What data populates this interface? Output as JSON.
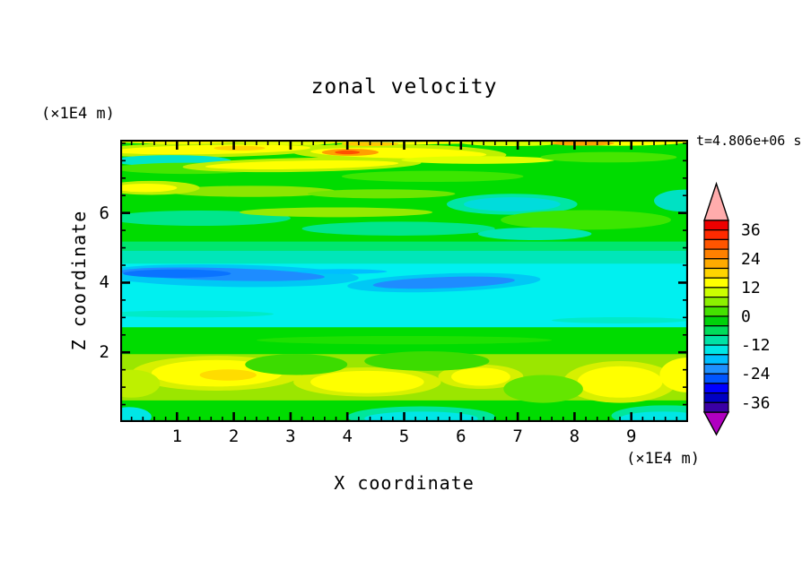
{
  "title": "zonal velocity",
  "timestamp": "t=4.806e+06 s",
  "y_axis_unit": "(×1E4 m)",
  "x_axis_unit": "(×1E4 m)",
  "x_axis_label": "X coordinate",
  "y_axis_label": "Z coordinate",
  "chart_data": {
    "type": "heatmap",
    "subtype": "filled-contour",
    "title": "zonal velocity",
    "xlabel": "X coordinate",
    "ylabel": "Z coordinate",
    "x_unit": "(×1E4 m)",
    "y_unit": "(×1E4 m)",
    "time_annotation": "t=4.806e+06 s",
    "xlim": [
      0,
      10
    ],
    "ylim": [
      0,
      8.1
    ],
    "grid": false,
    "legend_position": "colorbar-right",
    "axes": {
      "x": {
        "majors": [
          1,
          2,
          3,
          4,
          5,
          6,
          7,
          8,
          9
        ],
        "minor_step": 0.2
      },
      "y": {
        "majors": [
          2,
          4,
          6
        ],
        "minor_step": 0.5
      }
    },
    "colorbar": {
      "range": [
        -40,
        40
      ],
      "step": 4,
      "labels": [
        36,
        24,
        12,
        0,
        -12,
        -24,
        -36
      ],
      "colors_high_to_low": [
        "#EE0000",
        "#FF2A00",
        "#FF5500",
        "#FF8000",
        "#FFAA00",
        "#FFD400",
        "#FFFF00",
        "#CCFF00",
        "#8CF000",
        "#44E100",
        "#00D20A",
        "#00DC5A",
        "#00E1A5",
        "#00E6E6",
        "#00BFFF",
        "#1E90FF",
        "#0055FF",
        "#0000FF",
        "#0000C3",
        "#3A00A5"
      ],
      "above_color": "#FFACAC",
      "below_color": "#B000C0"
    },
    "field": {
      "background": "#00DC00",
      "stripes": [
        {
          "z": [
            0,
            0.62
          ],
          "color": "#00DC00"
        },
        {
          "z": [
            0.62,
            1.95
          ],
          "color": "#9BE600"
        },
        {
          "z": [
            1.95,
            2.72
          ],
          "color": "#00DC00"
        },
        {
          "z": [
            2.72,
            4.55
          ],
          "color": "#00F0F0"
        },
        {
          "z": [
            4.55,
            4.92
          ],
          "color": "#00E6B9"
        },
        {
          "z": [
            4.92,
            5.18
          ],
          "color": "#00E66E"
        },
        {
          "z": [
            5.18,
            8.1
          ],
          "color": "#00DC00"
        }
      ],
      "lenses": [
        {
          "x": 1.6,
          "z": 7.82,
          "rx": 2.1,
          "rz": 0.22,
          "color": "#BEF000",
          "rot": -1
        },
        {
          "x": 4.9,
          "z": 7.72,
          "rx": 1.9,
          "rz": 0.26,
          "color": "#BEF000",
          "rot": 1
        },
        {
          "x": 1.6,
          "z": 7.82,
          "rx": 1.75,
          "rz": 0.13,
          "color": "#FFFF00",
          "rot": -1
        },
        {
          "x": 4.9,
          "z": 7.72,
          "rx": 1.55,
          "rz": 0.15,
          "color": "#FFFF00",
          "rot": 1
        },
        {
          "x": 4.05,
          "z": 7.74,
          "rx": 0.5,
          "rz": 0.1,
          "color": "#FFA000"
        },
        {
          "x": 4.0,
          "z": 7.74,
          "rx": 0.22,
          "rz": 0.055,
          "color": "#FF5000"
        },
        {
          "x": 2.1,
          "z": 7.86,
          "rx": 0.45,
          "rz": 0.07,
          "color": "#FFD400"
        },
        {
          "x": 1.0,
          "z": 8.12,
          "rx": 1.3,
          "rz": 0.14,
          "color": "#FFFF00"
        },
        {
          "x": 3.0,
          "z": 8.06,
          "rx": 1.0,
          "rz": 0.11,
          "color": "#E6FF00"
        },
        {
          "x": 5.1,
          "z": 8.1,
          "rx": 1.7,
          "rz": 0.13,
          "color": "#FFFF00"
        },
        {
          "x": 4.4,
          "z": 7.98,
          "rx": 0.5,
          "rz": 0.06,
          "color": "#FFC800"
        },
        {
          "x": 6.9,
          "z": 8.02,
          "rx": 0.9,
          "rz": 0.1,
          "color": "#D9FF00"
        },
        {
          "x": 8.8,
          "z": 8.08,
          "rx": 1.3,
          "rz": 0.15,
          "color": "#FFFF00"
        },
        {
          "x": 8.15,
          "z": 8.0,
          "rx": 0.55,
          "rz": 0.07,
          "color": "#FFA500"
        },
        {
          "x": 4.75,
          "z": 8.09,
          "rx": 1.1,
          "rz": 0.05,
          "color": "#30C8FF"
        },
        {
          "x": 4.6,
          "z": 8.095,
          "rx": 0.5,
          "rz": 0.035,
          "color": "#009BFF"
        },
        {
          "x": 0.9,
          "z": 7.5,
          "rx": 1.05,
          "rz": 0.16,
          "color": "#00E6C8"
        },
        {
          "x": 1.2,
          "z": 7.28,
          "rx": 1.3,
          "rz": 0.16,
          "color": "#46E600"
        },
        {
          "x": 3.2,
          "z": 7.38,
          "rx": 2.1,
          "rz": 0.2,
          "color": "#BEF000",
          "rot": -1
        },
        {
          "x": 3.2,
          "z": 7.38,
          "rx": 1.7,
          "rz": 0.12,
          "color": "#FFFF00",
          "rot": -1
        },
        {
          "x": 6.3,
          "z": 7.52,
          "rx": 1.35,
          "rz": 0.11,
          "color": "#E1FF00"
        },
        {
          "x": 8.6,
          "z": 7.6,
          "rx": 1.2,
          "rz": 0.15,
          "color": "#46E600"
        },
        {
          "x": 5.5,
          "z": 7.05,
          "rx": 1.6,
          "rz": 0.16,
          "color": "#3CE600"
        },
        {
          "x": 2.3,
          "z": 6.62,
          "rx": 1.5,
          "rz": 0.16,
          "color": "#8CE600"
        },
        {
          "x": 4.6,
          "z": 6.55,
          "rx": 1.3,
          "rz": 0.13,
          "color": "#6EE600"
        },
        {
          "x": 0.55,
          "z": 6.72,
          "rx": 0.85,
          "rz": 0.2,
          "color": "#BEF000"
        },
        {
          "x": 0.45,
          "z": 6.72,
          "rx": 0.55,
          "rz": 0.12,
          "color": "#FFFF00"
        },
        {
          "x": 6.9,
          "z": 6.25,
          "rx": 1.15,
          "rz": 0.3,
          "color": "#00E6A5"
        },
        {
          "x": 6.9,
          "z": 6.25,
          "rx": 0.85,
          "rz": 0.2,
          "color": "#00DCDC"
        },
        {
          "x": 9.95,
          "z": 6.35,
          "rx": 0.55,
          "rz": 0.32,
          "color": "#00E1C3"
        },
        {
          "x": 1.4,
          "z": 5.85,
          "rx": 1.6,
          "rz": 0.22,
          "color": "#00E68C"
        },
        {
          "x": 3.8,
          "z": 6.02,
          "rx": 1.7,
          "rz": 0.14,
          "color": "#96EB00"
        },
        {
          "x": 4.9,
          "z": 5.55,
          "rx": 1.7,
          "rz": 0.2,
          "color": "#00E68C"
        },
        {
          "x": 8.2,
          "z": 5.8,
          "rx": 1.5,
          "rz": 0.28,
          "color": "#3CE600"
        },
        {
          "x": 7.3,
          "z": 5.4,
          "rx": 1.0,
          "rz": 0.18,
          "color": "#00E6B4"
        },
        {
          "x": 1.9,
          "z": 4.2,
          "rx": 2.3,
          "rz": 0.32,
          "color": "#00C8F5",
          "rot": 1
        },
        {
          "x": 5.7,
          "z": 4.0,
          "rx": 1.7,
          "rz": 0.26,
          "color": "#00C8F5",
          "rot": -2
        },
        {
          "x": 1.8,
          "z": 4.24,
          "rx": 1.8,
          "rz": 0.18,
          "color": "#1E8CFF",
          "rot": 1.5
        },
        {
          "x": 1.0,
          "z": 4.26,
          "rx": 0.95,
          "rz": 0.12,
          "color": "#0A73FF"
        },
        {
          "x": 5.7,
          "z": 4.0,
          "rx": 1.25,
          "rz": 0.16,
          "color": "#1E8CFF",
          "rot": -2
        },
        {
          "x": 3.9,
          "z": 4.32,
          "rx": 0.8,
          "rz": 0.07,
          "color": "#00BEFF"
        },
        {
          "x": 1.2,
          "z": 3.1,
          "rx": 1.5,
          "rz": 0.1,
          "color": "#00EBC8"
        },
        {
          "x": 8.8,
          "z": 2.92,
          "rx": 1.2,
          "rz": 0.09,
          "color": "#00EBC8"
        },
        {
          "x": 5.0,
          "z": 2.35,
          "rx": 2.6,
          "rz": 0.12,
          "color": "#1EE100"
        },
        {
          "x": 1.7,
          "z": 1.4,
          "rx": 1.5,
          "rz": 0.5,
          "color": "#D7F000"
        },
        {
          "x": 1.7,
          "z": 1.4,
          "rx": 1.15,
          "rz": 0.38,
          "color": "#FFFF00"
        },
        {
          "x": 1.9,
          "z": 1.35,
          "rx": 0.5,
          "rz": 0.16,
          "color": "#FFDC00"
        },
        {
          "x": 4.35,
          "z": 1.15,
          "rx": 1.3,
          "rz": 0.42,
          "color": "#D7F000"
        },
        {
          "x": 4.35,
          "z": 1.15,
          "rx": 1.0,
          "rz": 0.32,
          "color": "#FFFF00"
        },
        {
          "x": 6.35,
          "z": 1.3,
          "rx": 0.75,
          "rz": 0.35,
          "color": "#D7F000"
        },
        {
          "x": 6.35,
          "z": 1.3,
          "rx": 0.52,
          "rz": 0.26,
          "color": "#FFFF00"
        },
        {
          "x": 8.8,
          "z": 1.15,
          "rx": 1.0,
          "rz": 0.6,
          "color": "#D7F000"
        },
        {
          "x": 8.8,
          "z": 1.15,
          "rx": 0.75,
          "rz": 0.45,
          "color": "#FFFF00"
        },
        {
          "x": 10.0,
          "z": 1.35,
          "rx": 0.5,
          "rz": 0.5,
          "color": "#FFFF00"
        },
        {
          "x": 3.1,
          "z": 1.65,
          "rx": 0.9,
          "rz": 0.3,
          "color": "#3CDC00"
        },
        {
          "x": 5.4,
          "z": 1.75,
          "rx": 1.1,
          "rz": 0.28,
          "color": "#3CDC00"
        },
        {
          "x": 7.45,
          "z": 0.95,
          "rx": 0.7,
          "rz": 0.4,
          "color": "#64E600"
        },
        {
          "x": 0.2,
          "z": 1.1,
          "rx": 0.5,
          "rz": 0.4,
          "color": "#BEF000"
        },
        {
          "x": 5.3,
          "z": 0.15,
          "rx": 1.3,
          "rz": 0.3,
          "color": "#00E69B"
        },
        {
          "x": 5.3,
          "z": 0.1,
          "rx": 1.0,
          "rz": 0.2,
          "color": "#00E6E6"
        },
        {
          "x": 9.6,
          "z": 0.18,
          "rx": 0.95,
          "rz": 0.3,
          "color": "#00E69B"
        },
        {
          "x": 9.55,
          "z": 0.1,
          "rx": 0.75,
          "rz": 0.2,
          "color": "#00E6E6"
        },
        {
          "x": 0.15,
          "z": 0.15,
          "rx": 0.4,
          "rz": 0.28,
          "color": "#00E6E6"
        }
      ]
    }
  }
}
